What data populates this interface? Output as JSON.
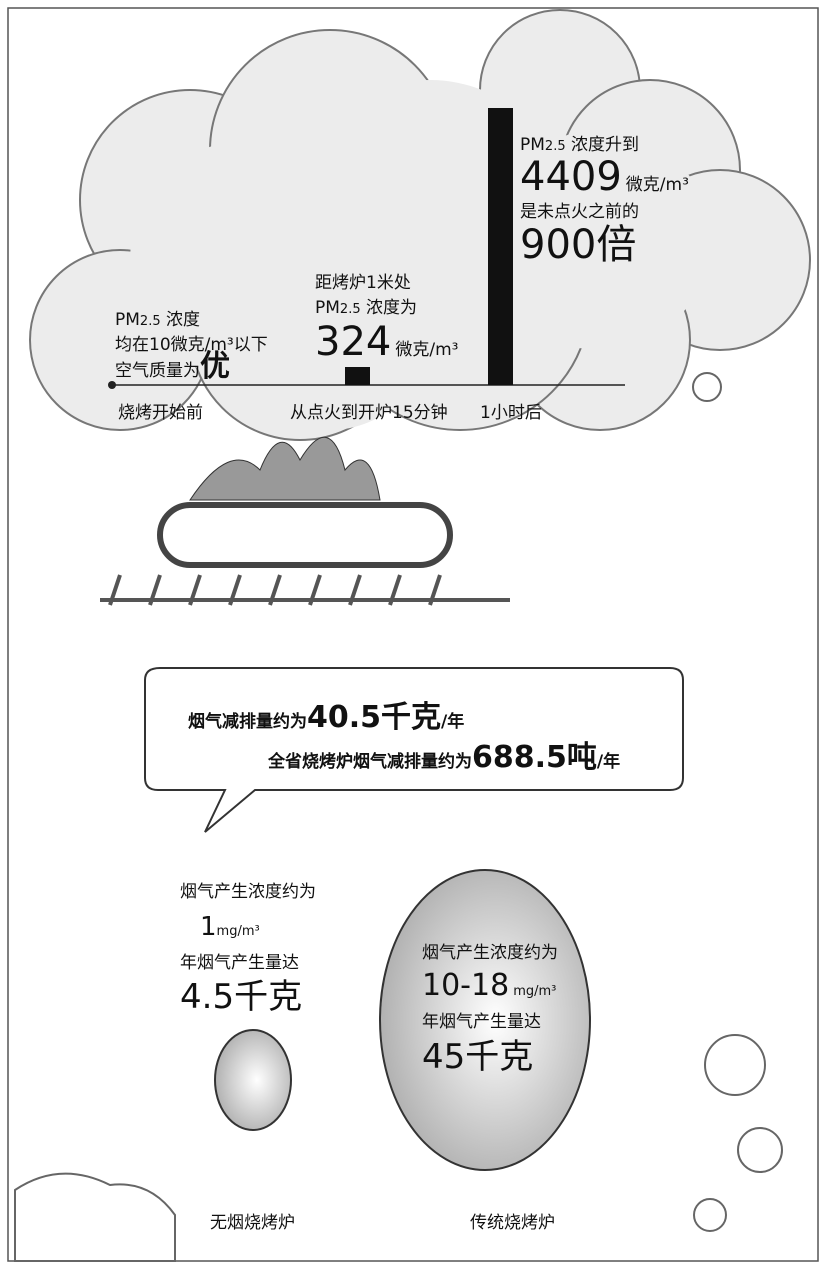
{
  "top": {
    "before": {
      "pm": "PM",
      "sub": "2.5",
      "line1": "浓度",
      "line2": "均在10微克/m³以下",
      "line3": "空气质量为",
      "grade": "优",
      "label": "烧烤开始前"
    },
    "mid": {
      "line1": "距烤炉1米处",
      "pm": "PM",
      "sub": "2.5",
      "line2": "浓度为",
      "value": "324",
      "unit": "微克/m³",
      "label": "从点火到开炉15分钟"
    },
    "after": {
      "pm": "PM",
      "sub": "2.5",
      "line1": "浓度升到",
      "value": "4409",
      "unit": "微克/m³",
      "line3": "是未点火之前的",
      "ratio": "900倍",
      "label": "1小时后"
    }
  },
  "bubble": {
    "line1": {
      "text": "烟气减排量约为",
      "value": "40.5千克",
      "unit": "/年"
    },
    "line2": {
      "text": "全省烧烤炉烟气减排量约为",
      "value": "688.5吨",
      "unit": "/年"
    }
  },
  "smokeless": {
    "line1": "烟气产生浓度约为",
    "value": "1",
    "unit": "mg/m³",
    "line3": "年烟气产生量达",
    "amount": "4.5千克",
    "label": "无烟烧烤炉"
  },
  "traditional": {
    "line1": "烟气产生浓度约为",
    "value": "10-18",
    "unit": "mg/m³",
    "line3": "年烟气产生量达",
    "amount": "45千克",
    "label": "传统烧烤炉"
  }
}
